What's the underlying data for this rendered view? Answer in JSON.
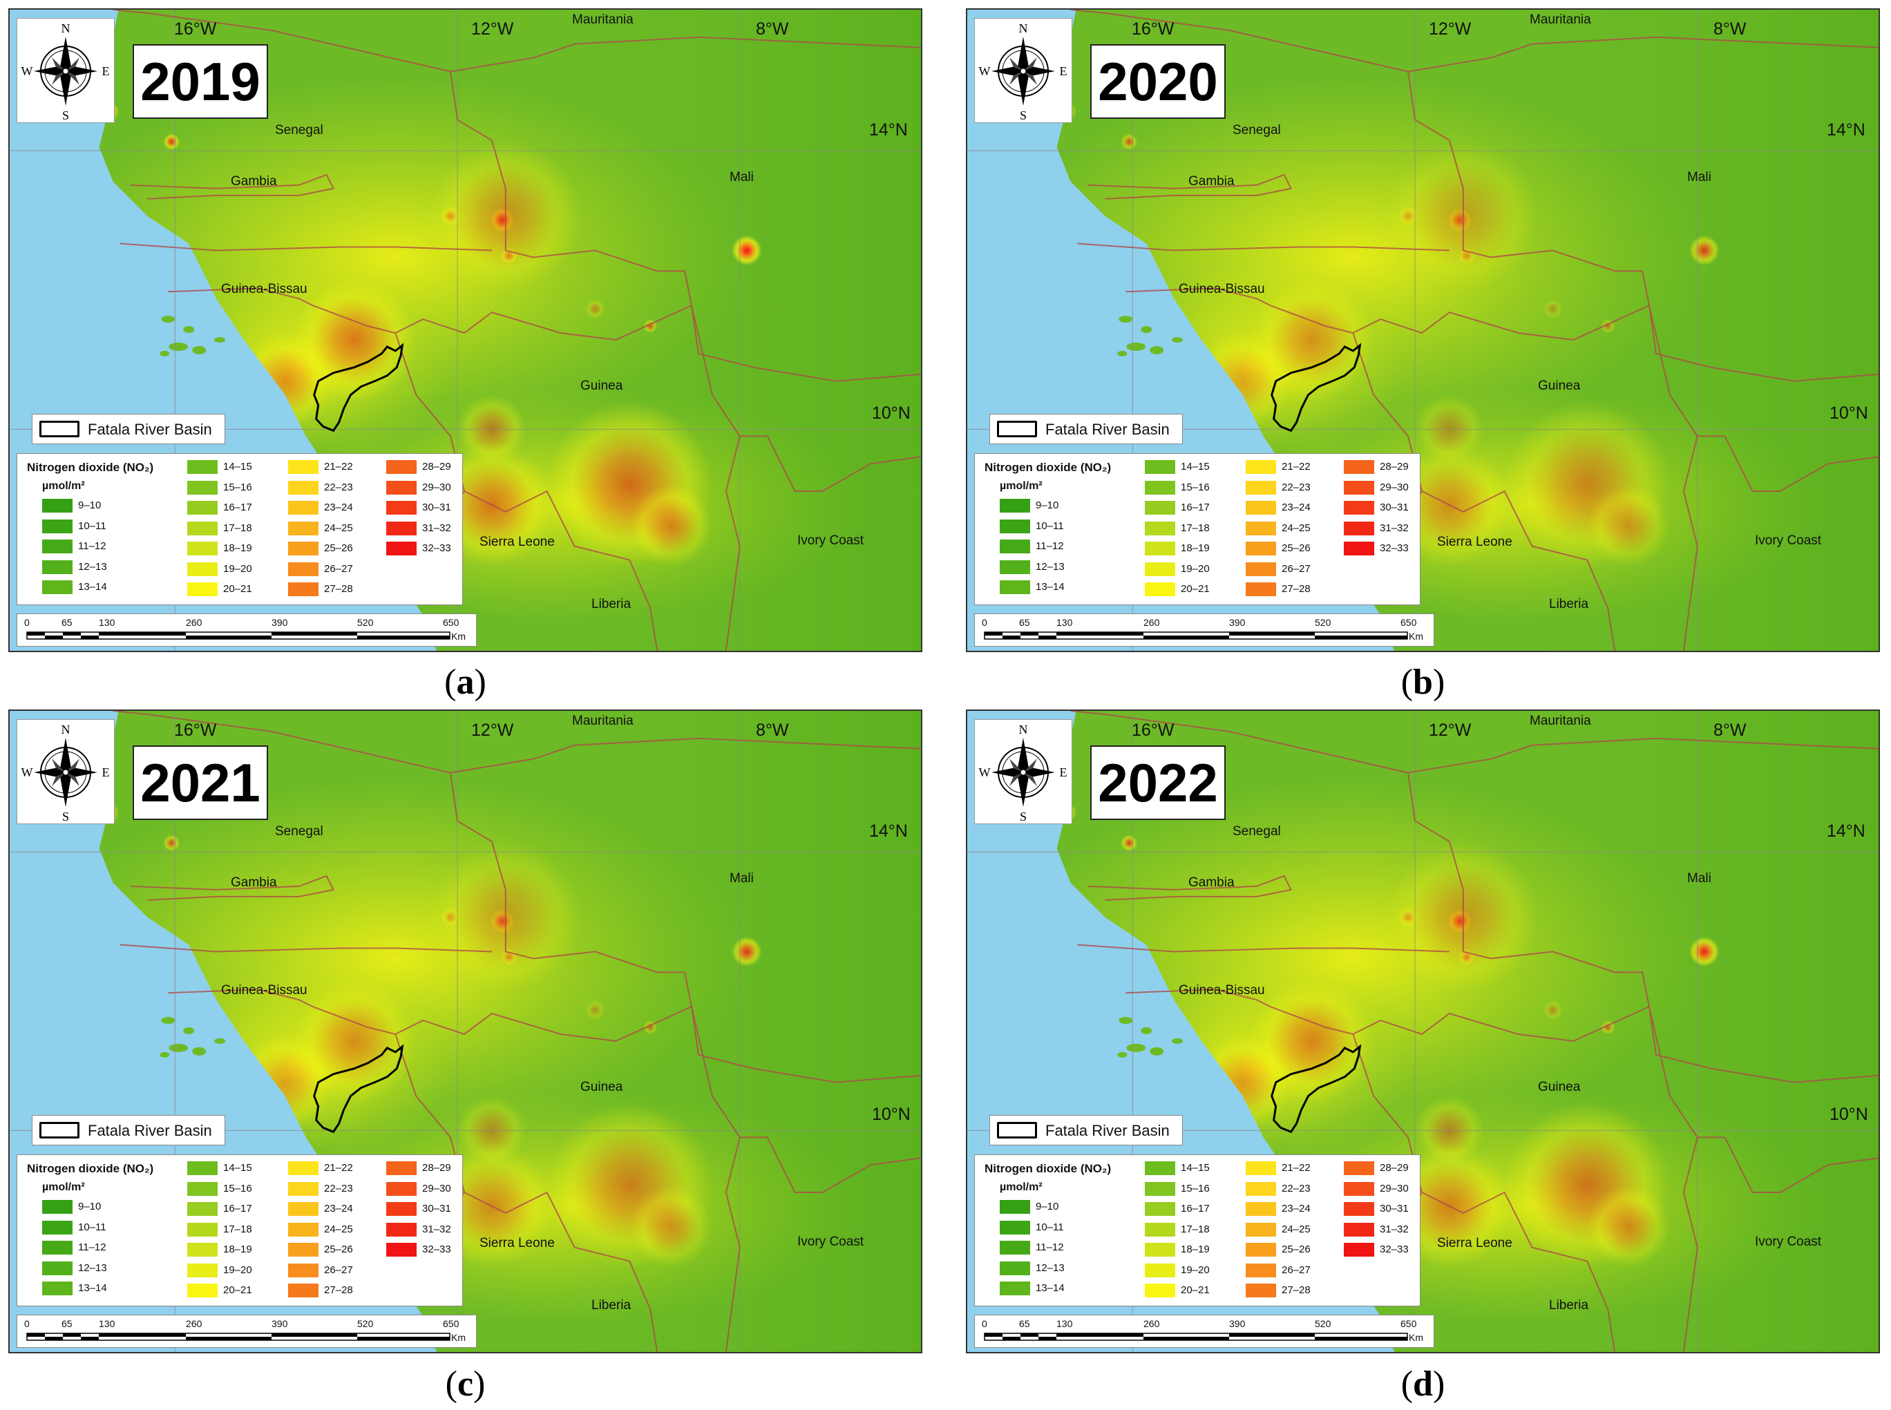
{
  "colors": {
    "ocean": "#8fd0ec",
    "base_green": "#6dba26",
    "border": "#b04a4a",
    "graticule": "#8a8a8a"
  },
  "compass": {
    "n": "N",
    "s": "S",
    "e": "E",
    "w": "W"
  },
  "labels": {
    "mauritania": "Mauritania",
    "senegal": "Senegal",
    "gambia": "Gambia",
    "mali": "Mali",
    "guinea_bissau": "Guinea-Bissau",
    "guinea": "Guinea",
    "sierra_leone": "Sierra Leone",
    "ivory_coast": "Ivory Coast",
    "liberia": "Liberia"
  },
  "coords": {
    "lon16": "16°W",
    "lon12": "12°W",
    "lon8": "8°W",
    "lat14": "14°N",
    "lat10": "10°N"
  },
  "basin_legend": "Fatala River Basin",
  "legend_title": "Nitrogen dioxide (NO₂)",
  "legend_unit": "µmol/m²",
  "legend_classes": [
    {
      "label": "9–10",
      "color": "#35a015"
    },
    {
      "label": "10–11",
      "color": "#3ca515"
    },
    {
      "label": "11–12",
      "color": "#46aa18"
    },
    {
      "label": "12–13",
      "color": "#52b01a"
    },
    {
      "label": "13–14",
      "color": "#5eb61c"
    },
    {
      "label": "14–15",
      "color": "#6dbd1e"
    },
    {
      "label": "15–16",
      "color": "#80c41f"
    },
    {
      "label": "16–17",
      "color": "#97cc20"
    },
    {
      "label": "17–18",
      "color": "#b3d81c"
    },
    {
      "label": "18–19",
      "color": "#cfe31a"
    },
    {
      "label": "19–20",
      "color": "#e8ee16"
    },
    {
      "label": "20–21",
      "color": "#fbf514"
    },
    {
      "label": "21–22",
      "color": "#fde41a"
    },
    {
      "label": "22–23",
      "color": "#fcd51c"
    },
    {
      "label": "23–24",
      "color": "#fbc51c"
    },
    {
      "label": "24–25",
      "color": "#f9b31c"
    },
    {
      "label": "25–26",
      "color": "#f8a01c"
    },
    {
      "label": "26–27",
      "color": "#f78d1c"
    },
    {
      "label": "27–28",
      "color": "#f6791b"
    },
    {
      "label": "28–29",
      "color": "#f5641b"
    },
    {
      "label": "29–30",
      "color": "#f44f1a"
    },
    {
      "label": "30–31",
      "color": "#f33b18"
    },
    {
      "label": "31–32",
      "color": "#f22817"
    },
    {
      "label": "32–33",
      "color": "#f01414"
    }
  ],
  "scale": {
    "ticks": [
      "0",
      "65",
      "130",
      "260",
      "390",
      "520",
      "650"
    ],
    "unit": "Km"
  },
  "panels": [
    {
      "year": "2019",
      "caption_letter": "a",
      "intensity": 1.0
    },
    {
      "year": "2020",
      "caption_letter": "b",
      "intensity": 0.75
    },
    {
      "year": "2021",
      "caption_letter": "c",
      "intensity": 0.8
    },
    {
      "year": "2022",
      "caption_letter": "d",
      "intensity": 0.9
    }
  ]
}
